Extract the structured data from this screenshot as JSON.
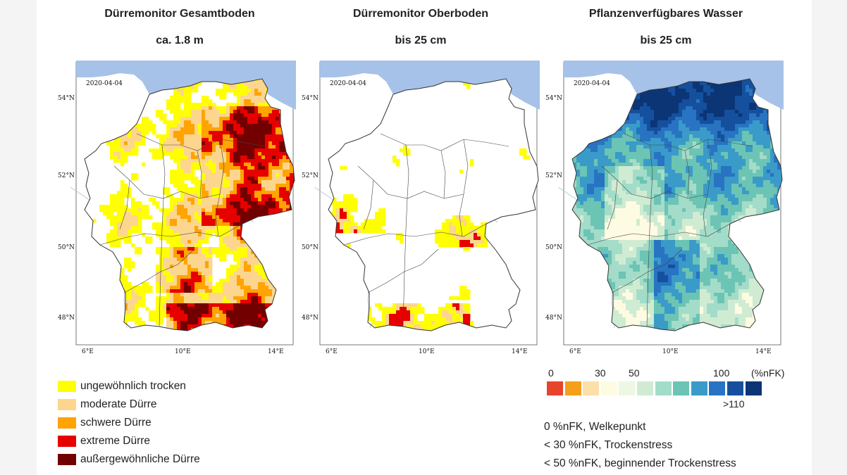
{
  "panels": [
    {
      "title": "Dürremonitor Gesamtboden",
      "subtitle": "ca. 1.8 m",
      "date": "2020-04-04"
    },
    {
      "title": "Dürremonitor Oberboden",
      "subtitle": "bis 25 cm",
      "date": "2020-04-04"
    },
    {
      "title": "Pflanzenverfügbares Wasser",
      "subtitle": "bis 25 cm",
      "date": "2020-04-04"
    }
  ],
  "lat_labels": [
    "54°N",
    "52°N",
    "50°N",
    "48°N"
  ],
  "lon_labels": [
    "6°E",
    "10°E",
    "14°E"
  ],
  "drought_legend": [
    {
      "label": "ungewöhnlich trocken",
      "color": "#ffff00"
    },
    {
      "label": "moderate Dürre",
      "color": "#fcd68e"
    },
    {
      "label": "schwere Dürre",
      "color": "#ffa400"
    },
    {
      "label": "extreme Dürre",
      "color": "#e60000"
    },
    {
      "label": "außergewöhnliche Dürre",
      "color": "#730000"
    }
  ],
  "water_scale": {
    "labels": [
      {
        "text": "0"
      },
      {
        "text": "30"
      },
      {
        "text": "50"
      },
      {
        "text": "100"
      },
      {
        "text": "(%nFK)"
      },
      {
        "text": ">110"
      }
    ],
    "colors": [
      "#e8432b",
      "#f5a01a",
      "#fce0a8",
      "#fdfbe2",
      "#edf8e2",
      "#cfecd2",
      "#a3dcc9",
      "#6cc4b4",
      "#3a9bc9",
      "#2873c2",
      "#14509e",
      "#0b3575"
    ]
  },
  "notes": [
    "0 %nFK, Welkepunkt",
    "< 30 %nFK, Trockenstress",
    "< 50 %nFK, beginnender Trockenstress"
  ],
  "colors": {
    "sea": "#a7c2e8",
    "land": "#ffffff",
    "border": "#333333",
    "river": "#b9c7d6"
  }
}
